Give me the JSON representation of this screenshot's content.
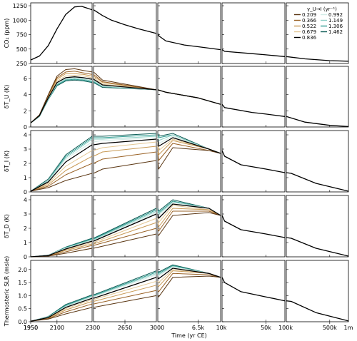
{
  "chart_data": {
    "type": "line",
    "xlabel": "Time (yr CE)",
    "legend": {
      "title": "γ_U→I  (yr⁻¹)",
      "placement": "top-right",
      "entries": [
        "0.209",
        "0.366",
        "0.522",
        "0.679",
        "0.836",
        "0.992",
        "1.149",
        "1.306",
        "1.462"
      ],
      "colors": [
        "#5a3511",
        "#9a6226",
        "#c99a55",
        "#e3c794",
        "#000000",
        "#d3ece8",
        "#8ccfc6",
        "#2e9c91",
        "#0c5b55"
      ]
    },
    "x_segments": [
      {
        "ticks": [
          1950,
          2100
        ],
        "tick_labels": [
          "1950",
          "2100"
        ],
        "range": [
          1950,
          2300
        ]
      },
      {
        "ticks": [
          2650
        ],
        "tick_labels": [
          "2650"
        ],
        "range": [
          2300,
          3000
        ]
      },
      {
        "ticks": [
          6500
        ],
        "tick_labels": [
          "6.5k"
        ],
        "range": [
          3000,
          10000
        ]
      },
      {
        "ticks": [
          50000
        ],
        "tick_labels": [
          "50k"
        ],
        "range": [
          10000,
          100000
        ]
      },
      {
        "ticks": [
          500000
        ],
        "tick_labels": [
          "500k"
        ],
        "range": [
          100000,
          1000000
        ]
      }
    ],
    "boundary_labels": [
      "2300",
      "3000",
      "10k",
      "100k",
      "1m"
    ],
    "rows": [
      {
        "name": "co2",
        "ylabel": "CO₂ (ppm)",
        "ylim": [
          250,
          1300
        ],
        "yticks": [
          250,
          500,
          750,
          1000,
          1250
        ],
        "points": [
          [
            1950,
            310
          ],
          [
            2000,
            380
          ],
          [
            2050,
            560
          ],
          [
            2100,
            850
          ],
          [
            2150,
            1100
          ],
          [
            2200,
            1230
          ],
          [
            2240,
            1240
          ],
          [
            2270,
            1210
          ],
          [
            2300,
            1180
          ],
          [
            2400,
            1080
          ],
          [
            2500,
            1000
          ],
          [
            2650,
            920
          ],
          [
            2800,
            850
          ],
          [
            3000,
            770
          ],
          [
            3050,
            730
          ],
          [
            3500,
            640
          ],
          [
            5000,
            570
          ],
          [
            6500,
            540
          ],
          [
            10000,
            490
          ],
          [
            11000,
            460
          ],
          [
            30000,
            420
          ],
          [
            50000,
            400
          ],
          [
            100000,
            370
          ],
          [
            200000,
            330
          ],
          [
            500000,
            300
          ],
          [
            1000000,
            290
          ]
        ],
        "spread": 0
      },
      {
        "name": "dTU",
        "ylabel": "δT_U (K)",
        "ylim": [
          0,
          7.5
        ],
        "yticks": [
          0,
          2,
          4,
          6
        ],
        "series": [
          {
            "name": "0.209",
            "values": [
              0.5,
              1.5,
              4.0,
              6.3,
              7.1,
              7.2,
              7.0,
              6.8,
              5.8,
              4.6,
              4.3,
              3.6,
              2.8
            ]
          },
          {
            "name": "0.366",
            "values": [
              0.5,
              1.5,
              3.9,
              6.1,
              6.8,
              6.9,
              6.7,
              6.5,
              5.6,
              4.6,
              4.3,
              3.6,
              2.8
            ]
          },
          {
            "name": "0.522",
            "values": [
              0.5,
              1.4,
              3.8,
              5.9,
              6.6,
              6.6,
              6.5,
              6.3,
              5.5,
              4.6,
              4.3,
              3.6,
              2.8
            ]
          },
          {
            "name": "0.679",
            "values": [
              0.5,
              1.4,
              3.7,
              5.7,
              6.3,
              6.4,
              6.3,
              6.1,
              5.3,
              4.6,
              4.3,
              3.6,
              2.8
            ]
          },
          {
            "name": "0.836",
            "values": [
              0.5,
              1.4,
              3.6,
              5.5,
              6.1,
              6.2,
              6.1,
              5.9,
              5.2,
              4.6,
              4.3,
              3.6,
              2.8
            ]
          },
          {
            "name": "0.992",
            "values": [
              0.5,
              1.4,
              3.5,
              5.4,
              6.0,
              6.1,
              6.0,
              5.8,
              5.1,
              4.6,
              4.3,
              3.6,
              2.8
            ]
          },
          {
            "name": "1.149",
            "values": [
              0.5,
              1.3,
              3.5,
              5.3,
              5.9,
              6.0,
              5.9,
              5.7,
              5.0,
              4.6,
              4.3,
              3.6,
              2.8
            ]
          },
          {
            "name": "1.306",
            "values": [
              0.5,
              1.3,
              3.4,
              5.2,
              5.8,
              5.9,
              5.8,
              5.6,
              5.0,
              4.6,
              4.3,
              3.6,
              2.8
            ]
          },
          {
            "name": "1.462",
            "values": [
              0.5,
              1.3,
              3.4,
              5.1,
              5.7,
              5.8,
              5.7,
              5.5,
              4.9,
              4.6,
              4.3,
              3.6,
              2.8
            ]
          }
        ],
        "x": [
          1950,
          2000,
          2050,
          2100,
          2150,
          2200,
          2250,
          2300,
          2400,
          3000,
          3500,
          6500,
          10000
        ],
        "tail": [
          [
            10000,
            2.8
          ],
          [
            11000,
            2.4
          ],
          [
            30000,
            1.8
          ],
          [
            50000,
            1.6
          ],
          [
            100000,
            1.3
          ],
          [
            200000,
            0.6
          ],
          [
            500000,
            0.2
          ],
          [
            1000000,
            0.05
          ]
        ]
      },
      {
        "name": "dTI",
        "ylabel": "δT_I (K)",
        "ylim": [
          0,
          4.3
        ],
        "yticks": [
          0,
          1,
          2,
          3,
          4
        ],
        "series": [
          {
            "name": "0.209",
            "values": [
              0.05,
              0.3,
              0.8,
              1.3,
              1.6,
              2.2,
              1.6,
              3.1,
              2.9,
              2.7
            ]
          },
          {
            "name": "0.366",
            "values": [
              0.05,
              0.4,
              1.2,
              2.0,
              2.3,
              2.8,
              2.2,
              3.4,
              2.9,
              2.7
            ]
          },
          {
            "name": "0.522",
            "values": [
              0.05,
              0.5,
              1.5,
              2.5,
              2.8,
              3.2,
              2.6,
              3.6,
              3.0,
              2.7
            ]
          },
          {
            "name": "0.679",
            "values": [
              0.05,
              0.6,
              1.8,
              2.9,
              3.1,
              3.5,
              2.9,
              3.7,
              3.0,
              2.7
            ]
          },
          {
            "name": "0.836",
            "values": [
              0.05,
              0.7,
              2.1,
              3.3,
              3.4,
              3.7,
              3.2,
              3.8,
              3.0,
              2.7
            ]
          },
          {
            "name": "0.992",
            "values": [
              0.05,
              0.7,
              2.3,
              3.5,
              3.6,
              3.8,
              3.4,
              3.9,
              3.0,
              2.7
            ]
          },
          {
            "name": "1.149",
            "values": [
              0.05,
              0.8,
              2.4,
              3.7,
              3.7,
              3.9,
              3.6,
              4.0,
              3.0,
              2.7
            ]
          },
          {
            "name": "1.306",
            "values": [
              0.05,
              0.8,
              2.5,
              3.8,
              3.8,
              4.0,
              3.8,
              4.0,
              3.0,
              2.7
            ]
          },
          {
            "name": "1.462",
            "values": [
              0.05,
              0.9,
              2.6,
              3.9,
              3.9,
              4.1,
              3.9,
              4.1,
              3.0,
              2.7
            ]
          }
        ],
        "x": [
          1950,
          2050,
          2150,
          2300,
          2400,
          3000,
          3050,
          4000,
          8000,
          10000
        ],
        "tail": [
          [
            10000,
            2.9
          ],
          [
            11000,
            2.5
          ],
          [
            20000,
            1.9
          ],
          [
            50000,
            1.6
          ],
          [
            100000,
            1.35
          ],
          [
            120000,
            1.3
          ],
          [
            300000,
            0.6
          ],
          [
            1000000,
            0.05
          ]
        ]
      },
      {
        "name": "dTD",
        "ylabel": "δT_D (K)",
        "ylim": [
          0,
          4.3
        ],
        "yticks": [
          0,
          1,
          2,
          3,
          4
        ],
        "series": [
          {
            "name": "0.209",
            "values": [
              0.0,
              0.05,
              0.25,
              0.6,
              1.6,
              1.5,
              2.9,
              3.1,
              2.9
            ]
          },
          {
            "name": "0.366",
            "values": [
              0.0,
              0.06,
              0.35,
              0.8,
              2.0,
              1.8,
              3.2,
              3.2,
              2.9
            ]
          },
          {
            "name": "0.522",
            "values": [
              0.0,
              0.07,
              0.45,
              0.9,
              2.4,
              2.1,
              3.4,
              3.3,
              2.9
            ]
          },
          {
            "name": "0.679",
            "values": [
              0.0,
              0.08,
              0.5,
              1.0,
              2.7,
              2.4,
              3.6,
              3.3,
              2.9
            ]
          },
          {
            "name": "0.836",
            "values": [
              0.0,
              0.09,
              0.55,
              1.1,
              3.0,
              2.7,
              3.7,
              3.4,
              2.9
            ]
          },
          {
            "name": "0.992",
            "values": [
              0.0,
              0.1,
              0.6,
              1.15,
              3.1,
              2.9,
              3.8,
              3.4,
              2.9
            ]
          },
          {
            "name": "1.149",
            "values": [
              0.0,
              0.1,
              0.62,
              1.2,
              3.2,
              3.0,
              3.85,
              3.4,
              2.9
            ]
          },
          {
            "name": "1.306",
            "values": [
              0.0,
              0.11,
              0.65,
              1.25,
              3.3,
              3.1,
              3.9,
              3.4,
              2.9
            ]
          },
          {
            "name": "1.462",
            "values": [
              0.0,
              0.11,
              0.68,
              1.3,
              3.4,
              3.2,
              4.0,
              3.4,
              2.9
            ]
          }
        ],
        "x": [
          1950,
          2050,
          2150,
          2300,
          3000,
          3050,
          4000,
          8000,
          10000
        ],
        "tail": [
          [
            10000,
            2.9
          ],
          [
            11000,
            2.5
          ],
          [
            20000,
            1.9
          ],
          [
            50000,
            1.6
          ],
          [
            100000,
            1.35
          ],
          [
            120000,
            1.3
          ],
          [
            300000,
            0.6
          ],
          [
            1000000,
            0.05
          ]
        ]
      },
      {
        "name": "slr",
        "ylabel": "Thermosteric SLR (msle)",
        "ylim": [
          0,
          2.35
        ],
        "yticks": [
          0.0,
          0.5,
          1.0,
          1.5,
          2.0
        ],
        "yticklabels": [
          "0.0",
          "0.5",
          "1.0",
          "1.5",
          "2.0"
        ],
        "series": [
          {
            "name": "0.209",
            "values": [
              0.02,
              0.1,
              0.3,
              0.55,
              1.0,
              0.95,
              1.7,
              1.75,
              1.7
            ]
          },
          {
            "name": "0.366",
            "values": [
              0.02,
              0.12,
              0.38,
              0.68,
              1.2,
              1.15,
              1.85,
              1.8,
              1.7
            ]
          },
          {
            "name": "0.522",
            "values": [
              0.02,
              0.14,
              0.45,
              0.78,
              1.4,
              1.35,
              1.95,
              1.85,
              1.7
            ]
          },
          {
            "name": "0.679",
            "values": [
              0.02,
              0.15,
              0.5,
              0.85,
              1.55,
              1.5,
              2.0,
              1.85,
              1.7
            ]
          },
          {
            "name": "0.836",
            "values": [
              0.02,
              0.16,
              0.55,
              0.9,
              1.7,
              1.65,
              2.05,
              1.85,
              1.7
            ]
          },
          {
            "name": "0.992",
            "values": [
              0.02,
              0.17,
              0.58,
              0.95,
              1.8,
              1.75,
              2.1,
              1.85,
              1.7
            ]
          },
          {
            "name": "1.149",
            "values": [
              0.02,
              0.18,
              0.6,
              0.98,
              1.85,
              1.8,
              2.12,
              1.85,
              1.7
            ]
          },
          {
            "name": "1.306",
            "values": [
              0.02,
              0.19,
              0.63,
              1.0,
              1.9,
              1.85,
              2.15,
              1.85,
              1.7
            ]
          },
          {
            "name": "1.462",
            "values": [
              0.02,
              0.2,
              0.66,
              1.03,
              1.95,
              1.9,
              2.18,
              1.85,
              1.7
            ]
          }
        ],
        "x": [
          1950,
          2050,
          2150,
          2300,
          3000,
          3050,
          4000,
          8000,
          10000
        ],
        "tail": [
          [
            10000,
            1.7
          ],
          [
            11000,
            1.5
          ],
          [
            20000,
            1.15
          ],
          [
            50000,
            0.95
          ],
          [
            100000,
            0.8
          ],
          [
            120000,
            0.78
          ],
          [
            300000,
            0.35
          ],
          [
            1000000,
            0.03
          ]
        ]
      }
    ]
  }
}
